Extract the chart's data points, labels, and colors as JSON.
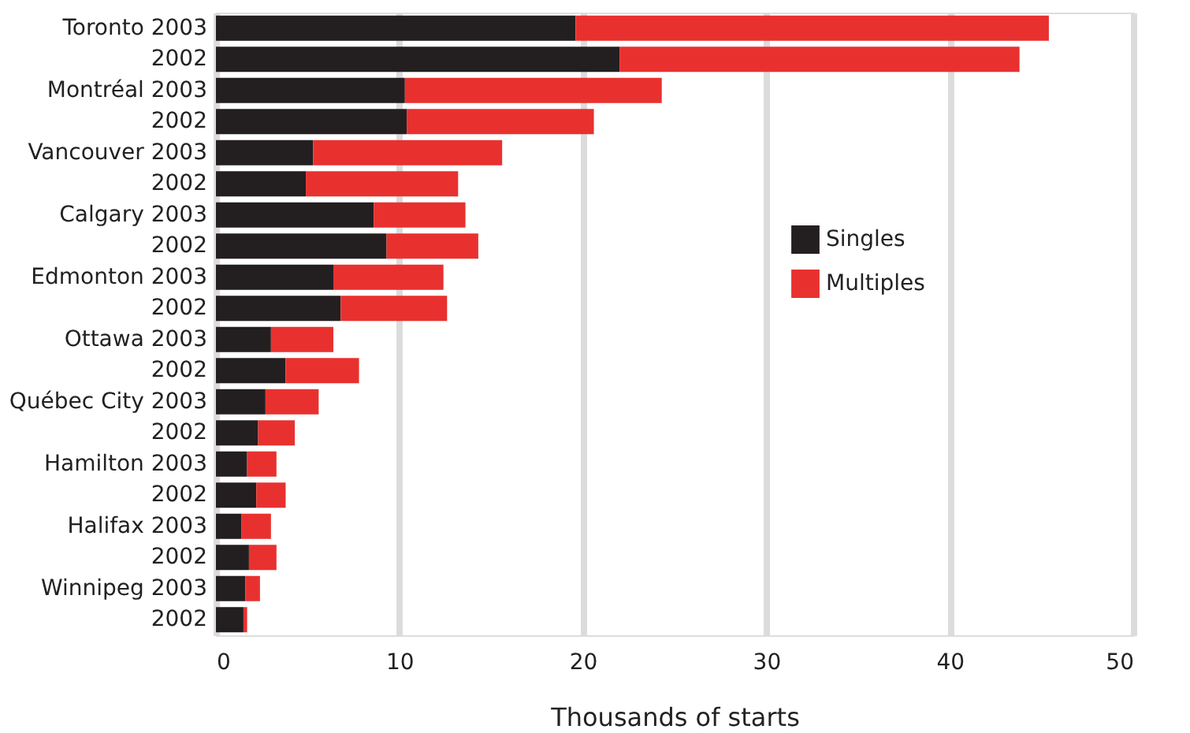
{
  "chart_data": {
    "type": "bar",
    "orientation": "horizontal",
    "stacked": true,
    "categories": [
      "Toronto 2003",
      "2002",
      "Montréal 2003",
      "2002",
      "Vancouver 2003",
      "2002",
      "Calgary 2003",
      "2002",
      "Edmonton 2003",
      "2002",
      "Ottawa 2003",
      "2002",
      "Québec City 2003",
      "2002",
      "Hamilton 2003",
      "2002",
      "Halifax 2003",
      "2002",
      "Winnipeg 2003",
      "2002"
    ],
    "series": [
      {
        "name": "Singles",
        "color": "#231f20",
        "values": [
          19.6,
          22.0,
          10.3,
          10.4,
          5.3,
          4.9,
          8.6,
          9.3,
          6.4,
          6.8,
          3.0,
          3.8,
          2.7,
          2.3,
          1.7,
          2.2,
          1.4,
          1.8,
          1.6,
          1.5
        ]
      },
      {
        "name": "Multiples",
        "color": "#e8312f",
        "values": [
          25.8,
          21.8,
          14.0,
          10.2,
          10.3,
          8.3,
          5.0,
          5.0,
          6.0,
          5.8,
          3.4,
          4.0,
          2.9,
          2.0,
          1.6,
          1.6,
          1.6,
          1.5,
          0.8,
          0.2
        ]
      }
    ],
    "xlim": [
      0,
      50
    ],
    "xticks": [
      0,
      10,
      20,
      30,
      40,
      50
    ],
    "xlabel": "Thousands of starts",
    "grid": "x",
    "legend": "right"
  }
}
